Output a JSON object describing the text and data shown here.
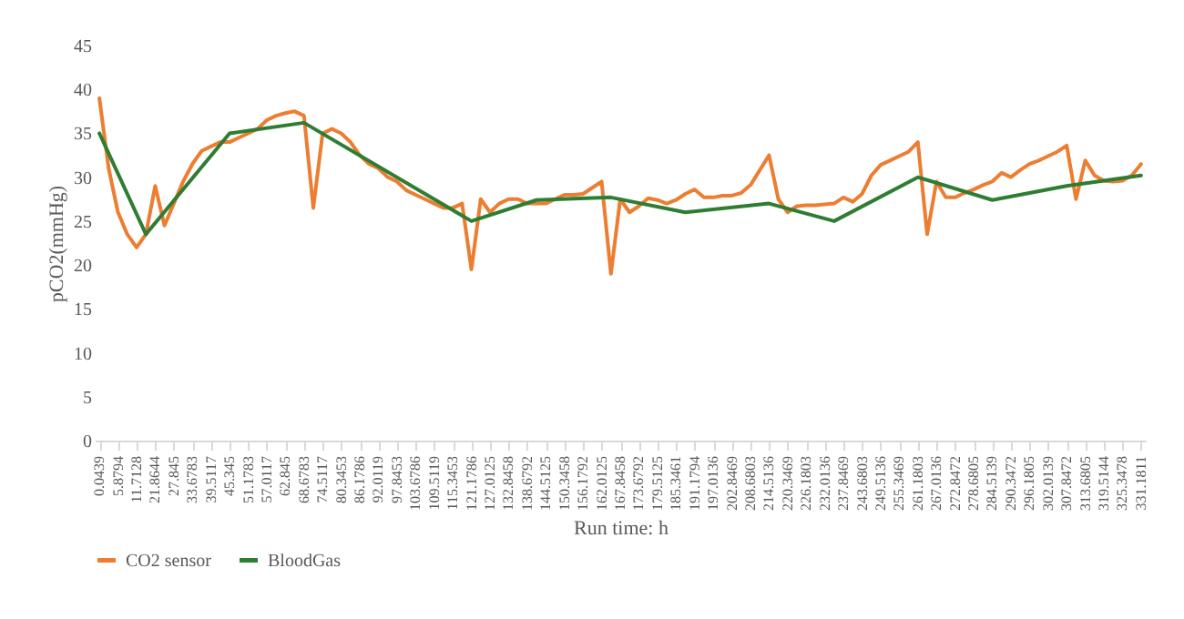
{
  "chart_data": {
    "type": "line",
    "xlabel": "Run time: h",
    "ylabel": "pCO2(mmHg)",
    "categories": [
      "0.0439",
      null,
      "5.8794",
      null,
      "11.7128",
      null,
      "21.8644",
      null,
      "27.845",
      null,
      "33.6783",
      null,
      "39.5117",
      null,
      "45.345",
      null,
      "51.1783",
      null,
      "57.0117",
      null,
      "62.845",
      null,
      "68.6783",
      null,
      "74.5117",
      null,
      "80.3453",
      null,
      "86.1786",
      null,
      "92.0119",
      null,
      "97.8453",
      null,
      "103.6786",
      null,
      "109.5119",
      null,
      "115.3453",
      null,
      "121.1786",
      null,
      "127.0125",
      null,
      "132.8458",
      null,
      "138.6792",
      null,
      "144.5125",
      null,
      "150.3458",
      null,
      "156.1792",
      null,
      "162.0125",
      null,
      "167.8458",
      null,
      "173.6792",
      null,
      "179.5125",
      null,
      "185.3461",
      null,
      "191.1794",
      null,
      "197.0136",
      null,
      "202.8469",
      null,
      "208.6803",
      null,
      "214.5136",
      null,
      "220.3469",
      null,
      "226.1803",
      null,
      "232.0136",
      null,
      "237.8469",
      null,
      "243.6803",
      null,
      "249.5136",
      null,
      "255.3469",
      null,
      "261.1803",
      null,
      "267.0136",
      null,
      "272.8472",
      null,
      "278.6805",
      null,
      "284.5139",
      null,
      "290.3472",
      null,
      "296.1805",
      null,
      "302.0139",
      null,
      "307.8472",
      null,
      "313.6805",
      null,
      "319.5144",
      null,
      "325.3478",
      null,
      "331.1811"
    ],
    "series": [
      {
        "name": "CO2 sensor",
        "color": "#ed7d31",
        "values": [
          39,
          31,
          26,
          23.5,
          22,
          23.5,
          29,
          24.5,
          27,
          29.5,
          31.5,
          33,
          33.5,
          34,
          34,
          34.5,
          35,
          35.5,
          36.5,
          37,
          37.3,
          37.5,
          37,
          26.5,
          35,
          35.5,
          35,
          34,
          32.5,
          31.5,
          31,
          30,
          29.5,
          28.5,
          28,
          27.5,
          27,
          26.5,
          26.5,
          27,
          19.5,
          27.5,
          26,
          27,
          27.5,
          27.5,
          27,
          27,
          27,
          27.5,
          28,
          28,
          28.1,
          28.8,
          29.5,
          19,
          27.5,
          26,
          26.7,
          27.6,
          27.4,
          27,
          27.4,
          28.1,
          28.6,
          27.7,
          27.7,
          27.9,
          27.9,
          28.2,
          29.1,
          30.8,
          32.5,
          27.5,
          26,
          26.7,
          26.8,
          26.8,
          26.9,
          27,
          27.7,
          27.2,
          28.1,
          30.2,
          31.4,
          31.9,
          32.4,
          32.9,
          34,
          23.5,
          29.5,
          27.7,
          27.7,
          28.2,
          28.6,
          29.1,
          29.5,
          30.5,
          30,
          30.8,
          31.5,
          31.9,
          32.4,
          32.9,
          33.6,
          27.5,
          31.9,
          30.2,
          29.6,
          29.5,
          29.6,
          30.2,
          31.5
        ]
      },
      {
        "name": "BloodGas",
        "color": "#2e7d32",
        "values": [
          35,
          null,
          null,
          null,
          null,
          23.5,
          null,
          null,
          null,
          null,
          null,
          null,
          null,
          null,
          35,
          null,
          null,
          null,
          null,
          null,
          null,
          null,
          36.2,
          null,
          null,
          null,
          null,
          null,
          null,
          null,
          null,
          null,
          null,
          null,
          null,
          null,
          null,
          null,
          null,
          null,
          25,
          null,
          null,
          null,
          null,
          null,
          null,
          27.4,
          null,
          null,
          null,
          null,
          null,
          null,
          null,
          27.7,
          null,
          null,
          null,
          null,
          null,
          null,
          null,
          26,
          null,
          null,
          null,
          null,
          null,
          null,
          null,
          null,
          27,
          null,
          null,
          null,
          null,
          null,
          null,
          25,
          null,
          null,
          null,
          null,
          null,
          null,
          null,
          null,
          30,
          null,
          null,
          null,
          null,
          null,
          null,
          null,
          27.4,
          null,
          null,
          null,
          null,
          null,
          null,
          null,
          29,
          null,
          null,
          null,
          null,
          null,
          null,
          null,
          30.2
        ]
      }
    ],
    "ylim": [
      0,
      45
    ],
    "yticks": [
      0,
      5,
      10,
      15,
      20,
      25,
      30,
      35,
      40,
      45
    ],
    "legend": "bottom"
  }
}
